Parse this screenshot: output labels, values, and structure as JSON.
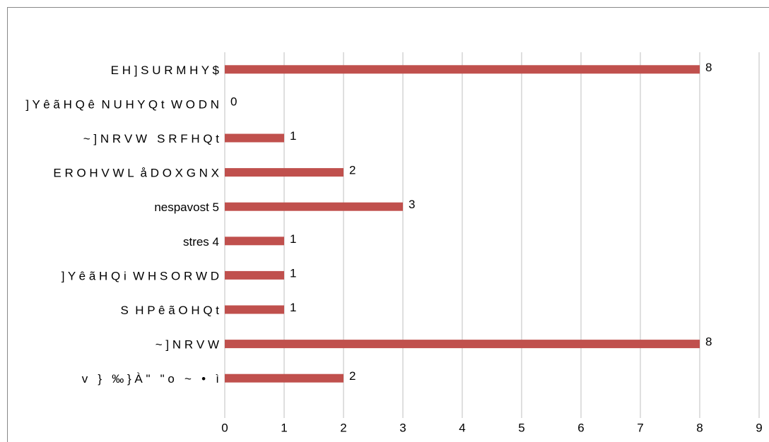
{
  "chart_data": {
    "type": "bar",
    "orientation": "horizontal",
    "categories": [
      "E H ] S U R M H Y $",
      "] Y ê ã H Q ê  N U H Y Q t  W O D N",
      "~ ] N R V W   S R F H Q t",
      "E R O H V W L  å D O X G N X",
      "nespavost 5",
      "stres 4",
      "] Y ê ã H Q i  W H S O R W D",
      "S  H P ê ã O H Q t",
      "~ ] N R V W",
      "v   }   ‰ } À \"   \" o   ~   •   ì"
    ],
    "values": [
      8,
      0,
      1,
      2,
      3,
      1,
      1,
      1,
      8,
      2
    ],
    "color": "#c0504d",
    "xlim": [
      0,
      9
    ],
    "xticks": [
      0,
      1,
      2,
      3,
      4,
      5,
      6,
      7,
      8,
      9
    ],
    "grid": true
  }
}
